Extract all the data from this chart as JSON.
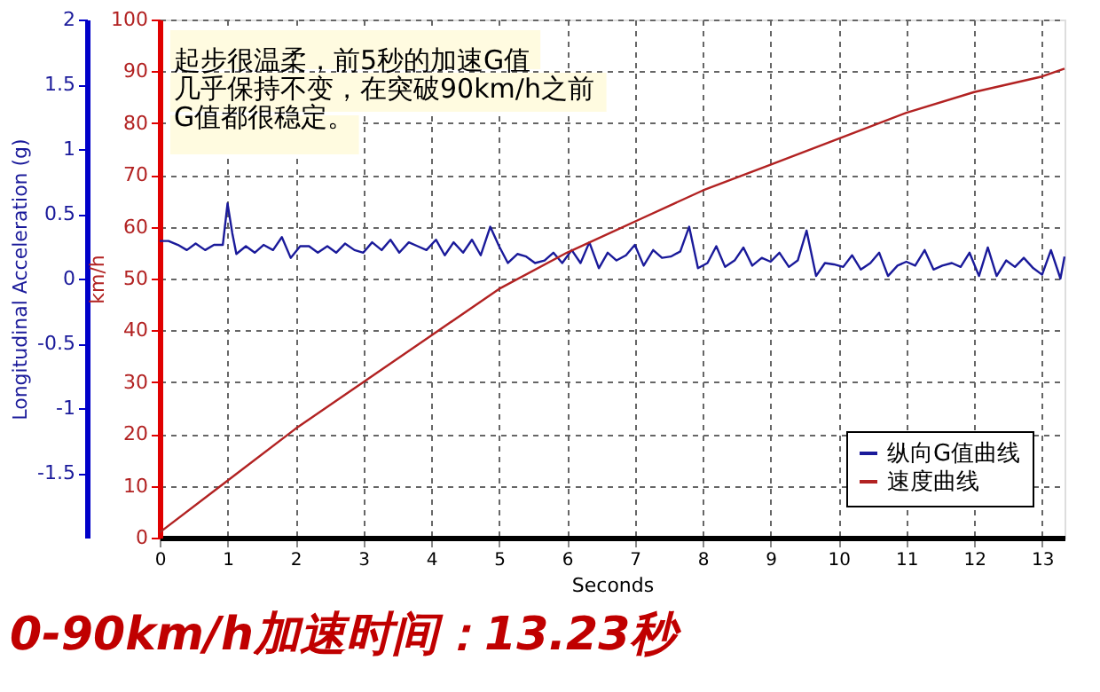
{
  "chart_data": {
    "type": "line",
    "title": "0-90km/h加速时间：13.23秒",
    "xlabel": "Seconds",
    "ylabel": "Longitudinal Acceleration (g)",
    "y2label": "km/h",
    "xlim": [
      0,
      13.33
    ],
    "xticks": [
      0,
      1,
      2,
      3,
      4,
      5,
      6,
      7,
      8,
      9,
      10,
      11,
      12,
      13
    ],
    "ylim": [
      -2,
      2
    ],
    "yticks": [
      -1.5,
      -1,
      -0.5,
      0,
      0.5,
      1,
      1.5,
      2
    ],
    "y2lim": [
      0,
      100
    ],
    "y2ticks": [
      0,
      10,
      20,
      30,
      40,
      50,
      60,
      70,
      80,
      90,
      100
    ],
    "grid": true,
    "legend": "bottom right",
    "line_style": "solid",
    "marker": "none",
    "annotations": [
      "起步很温柔，前5秒的加速G值",
      "几乎保持不变，在突破90km/h之前",
      "G值都很稳定。"
    ],
    "series": [
      {
        "name": "纵向G值曲线",
        "color": "#1a1a9a",
        "axis": "y",
        "x": [
          0,
          0.13,
          0.27,
          0.4,
          0.53,
          0.67,
          0.8,
          0.93,
          1.0,
          1.07,
          1.13,
          1.27,
          1.4,
          1.53,
          1.67,
          1.8,
          1.93,
          2.07,
          2.2,
          2.33,
          2.47,
          2.6,
          2.73,
          2.87,
          3.0,
          3.13,
          3.27,
          3.4,
          3.53,
          3.67,
          3.8,
          3.93,
          4.07,
          4.2,
          4.33,
          4.47,
          4.6,
          4.73,
          4.87,
          5.0,
          5.13,
          5.27,
          5.4,
          5.53,
          5.67,
          5.8,
          5.93,
          6.07,
          6.2,
          6.33,
          6.47,
          6.6,
          6.73,
          6.87,
          7.0,
          7.13,
          7.27,
          7.4,
          7.53,
          7.67,
          7.8,
          7.93,
          8.07,
          8.2,
          8.33,
          8.47,
          8.6,
          8.73,
          8.87,
          9.0,
          9.13,
          9.27,
          9.4,
          9.53,
          9.67,
          9.8,
          9.93,
          10.07,
          10.2,
          10.33,
          10.47,
          10.6,
          10.73,
          10.87,
          11.0,
          11.13,
          11.27,
          11.4,
          11.53,
          11.67,
          11.8,
          11.93,
          12.07,
          12.2,
          12.33,
          12.47,
          12.6,
          12.73,
          12.87,
          13.0,
          13.13,
          13.27,
          13.33
        ],
        "values": [
          0.29,
          0.29,
          0.26,
          0.22,
          0.27,
          0.22,
          0.26,
          0.26,
          0.58,
          0.35,
          0.19,
          0.25,
          0.2,
          0.26,
          0.22,
          0.32,
          0.16,
          0.25,
          0.25,
          0.2,
          0.25,
          0.2,
          0.27,
          0.22,
          0.2,
          0.28,
          0.22,
          0.3,
          0.2,
          0.28,
          0.25,
          0.22,
          0.3,
          0.18,
          0.28,
          0.2,
          0.3,
          0.18,
          0.4,
          0.25,
          0.12,
          0.19,
          0.17,
          0.12,
          0.14,
          0.2,
          0.12,
          0.22,
          0.12,
          0.28,
          0.08,
          0.2,
          0.14,
          0.18,
          0.26,
          0.1,
          0.22,
          0.16,
          0.17,
          0.21,
          0.4,
          0.08,
          0.12,
          0.25,
          0.09,
          0.14,
          0.24,
          0.1,
          0.16,
          0.13,
          0.2,
          0.09,
          0.14,
          0.37,
          0.02,
          0.12,
          0.11,
          0.09,
          0.18,
          0.07,
          0.12,
          0.2,
          0.02,
          0.1,
          0.13,
          0.1,
          0.22,
          0.07,
          0.1,
          0.12,
          0.09,
          0.2,
          0.02,
          0.24,
          0.02,
          0.14,
          0.09,
          0.16,
          0.08,
          0.03,
          0.22,
          0.0,
          0.17
        ]
      },
      {
        "name": "速度曲线",
        "color": "#b22222",
        "axis": "y2",
        "x": [
          0,
          1,
          2,
          3,
          4,
          5,
          6,
          7,
          8,
          9,
          10,
          11,
          12,
          13,
          13.33
        ],
        "values": [
          1,
          11,
          21,
          30,
          39,
          48,
          55,
          61,
          67,
          72,
          77,
          82,
          86,
          89,
          90.5
        ]
      }
    ]
  }
}
